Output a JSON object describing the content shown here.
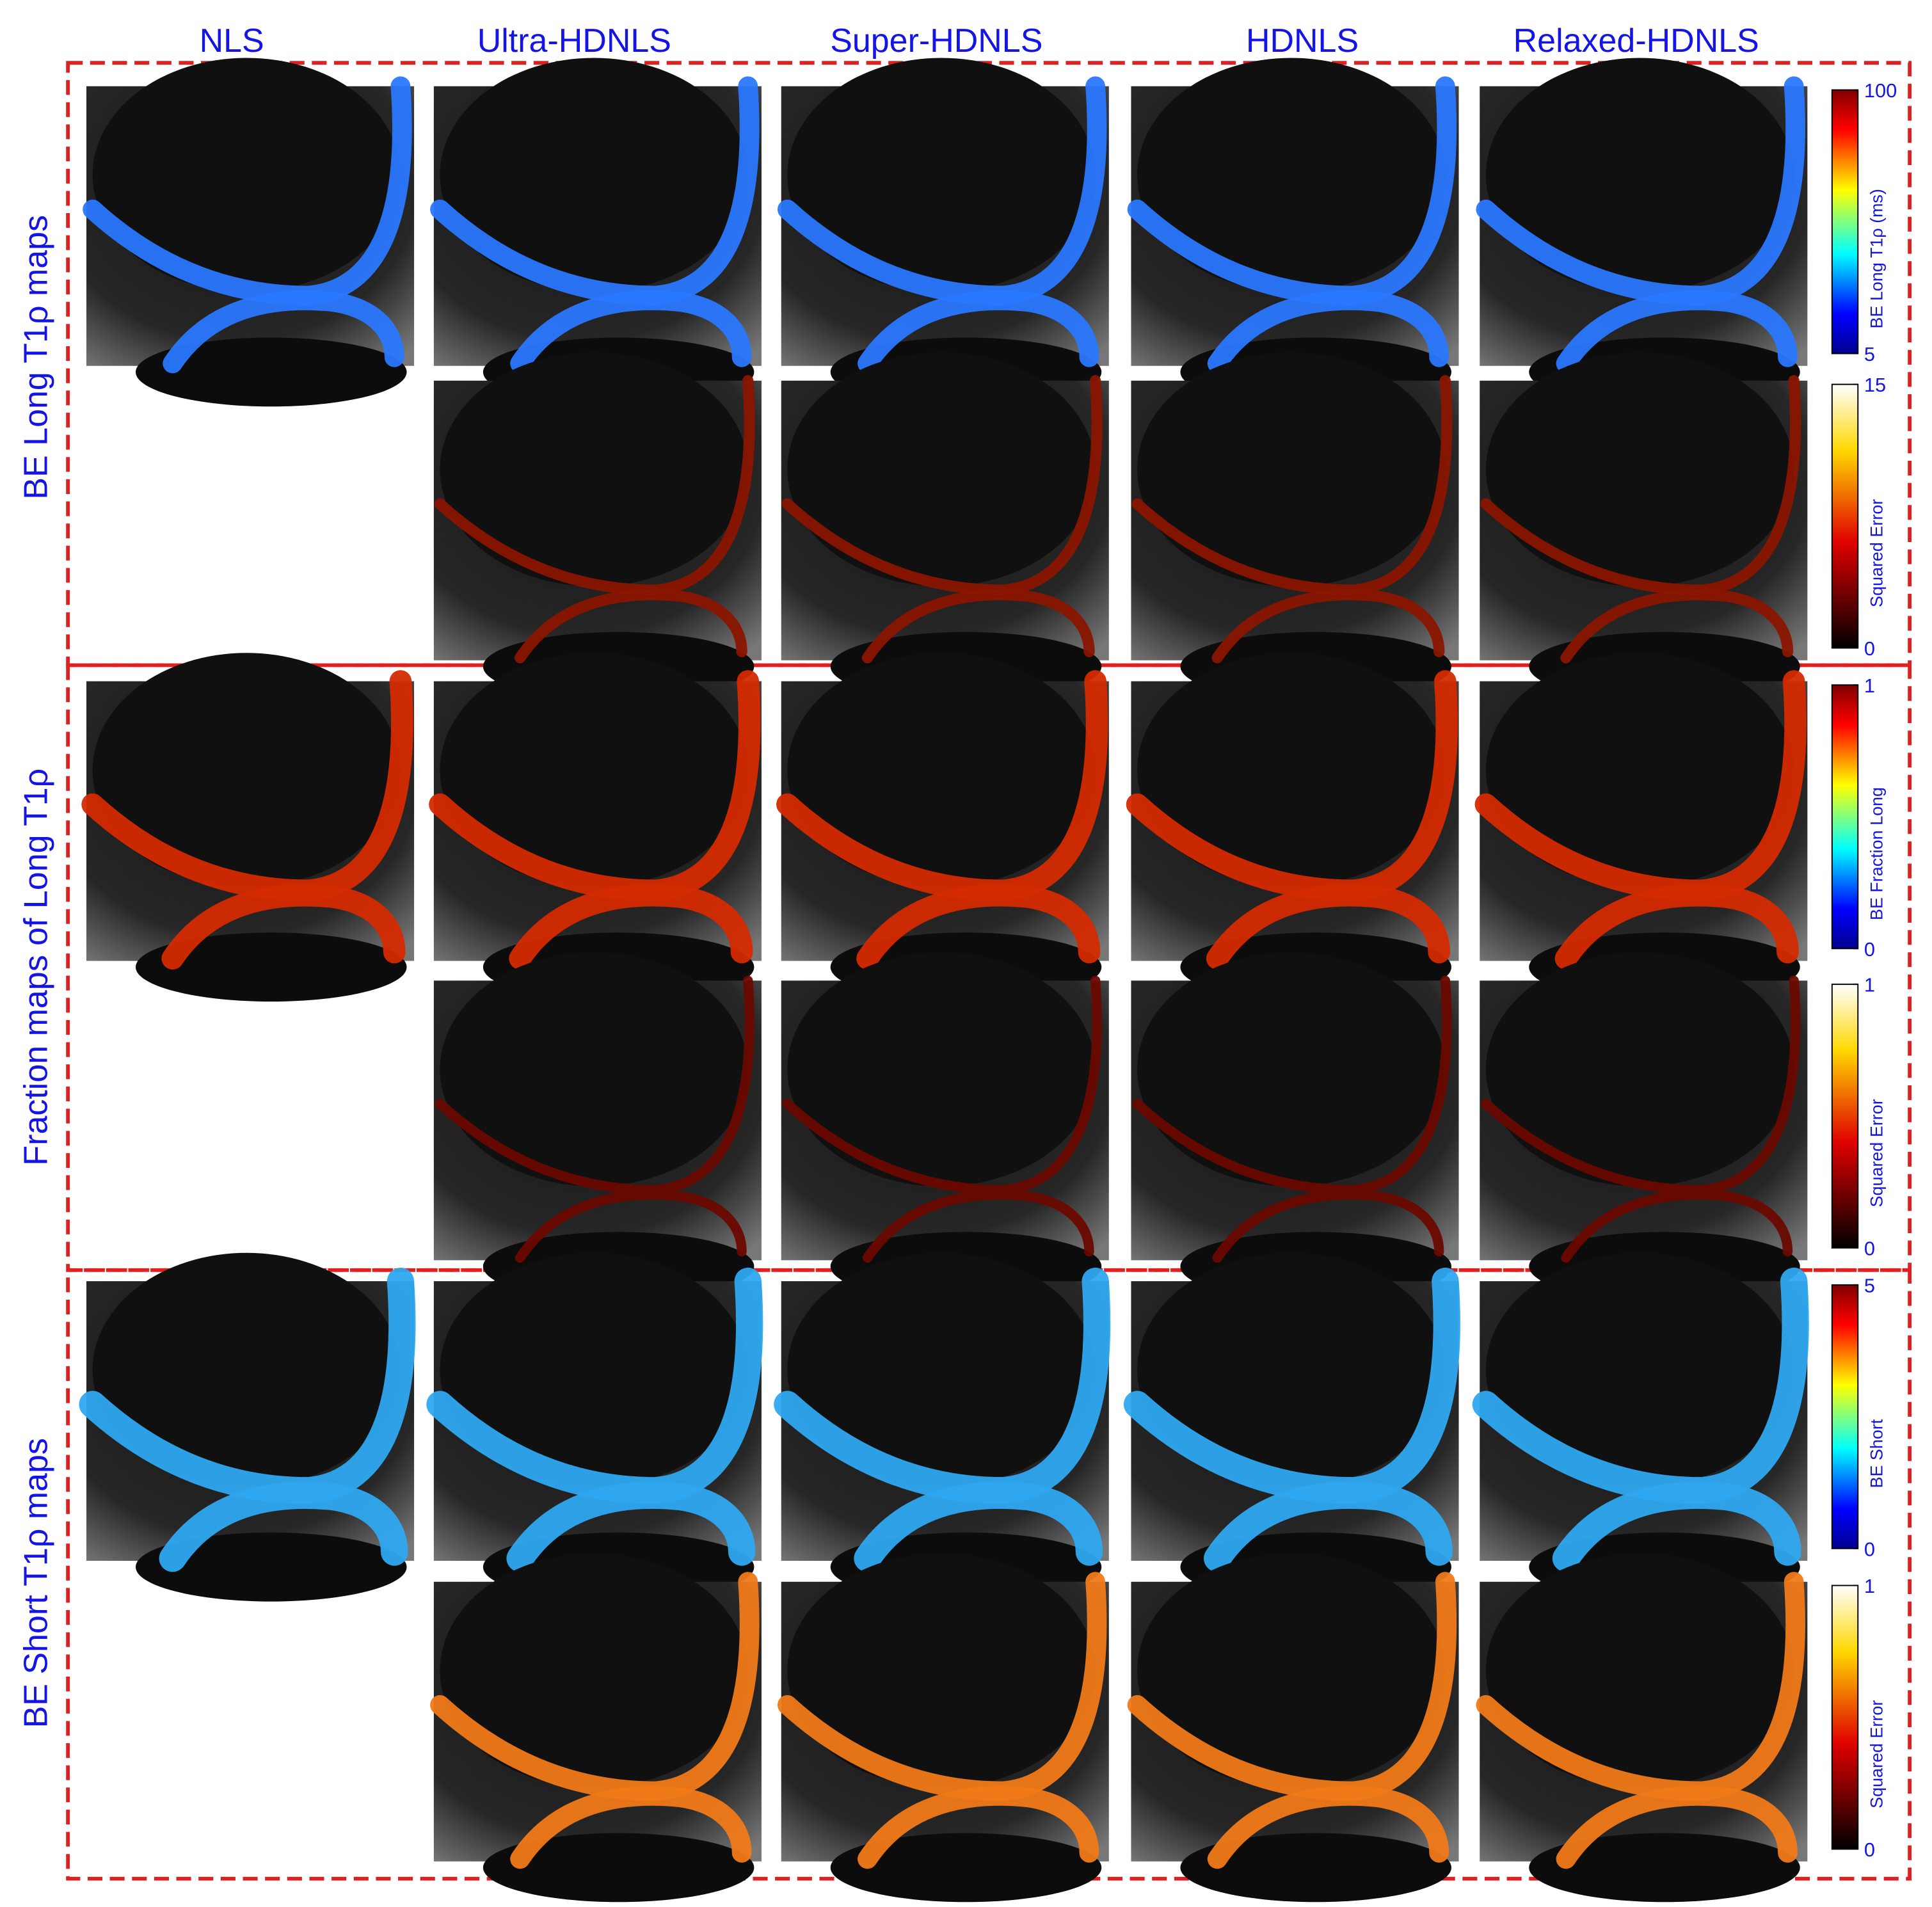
{
  "columns": [
    "NLS",
    "Ultra-HDNLS",
    "Super-HDNLS",
    "HDNLS",
    "Relaxed-HDNLS"
  ],
  "sections": [
    "BE Long  T1ρ maps",
    "Fraction maps of Long  T1ρ",
    "BE Short T1ρ maps"
  ],
  "colorbars": [
    {
      "title": "BE Long T1ρ (ms)",
      "colormap": "jet",
      "lim": [
        5,
        100
      ],
      "ticks": [
        5,
        100
      ]
    },
    {
      "title": "Squared Error",
      "colormap": "hot",
      "lim": [
        0,
        15
      ],
      "ticks": [
        0,
        15
      ]
    },
    {
      "title": "BE Fraction Long",
      "colormap": "jet",
      "lim": [
        0,
        1
      ],
      "ticks": [
        0,
        1
      ]
    },
    {
      "title": "Squared Error",
      "colormap": "hot",
      "lim": [
        0,
        1
      ],
      "ticks": [
        0,
        1
      ]
    },
    {
      "title": "BE Short",
      "colormap": "jet",
      "lim": [
        0,
        5
      ],
      "ticks": [
        0,
        5
      ]
    },
    {
      "title": "Squared Error",
      "colormap": "hot",
      "lim": [
        0,
        1
      ],
      "ticks": [
        0,
        1
      ]
    }
  ]
}
